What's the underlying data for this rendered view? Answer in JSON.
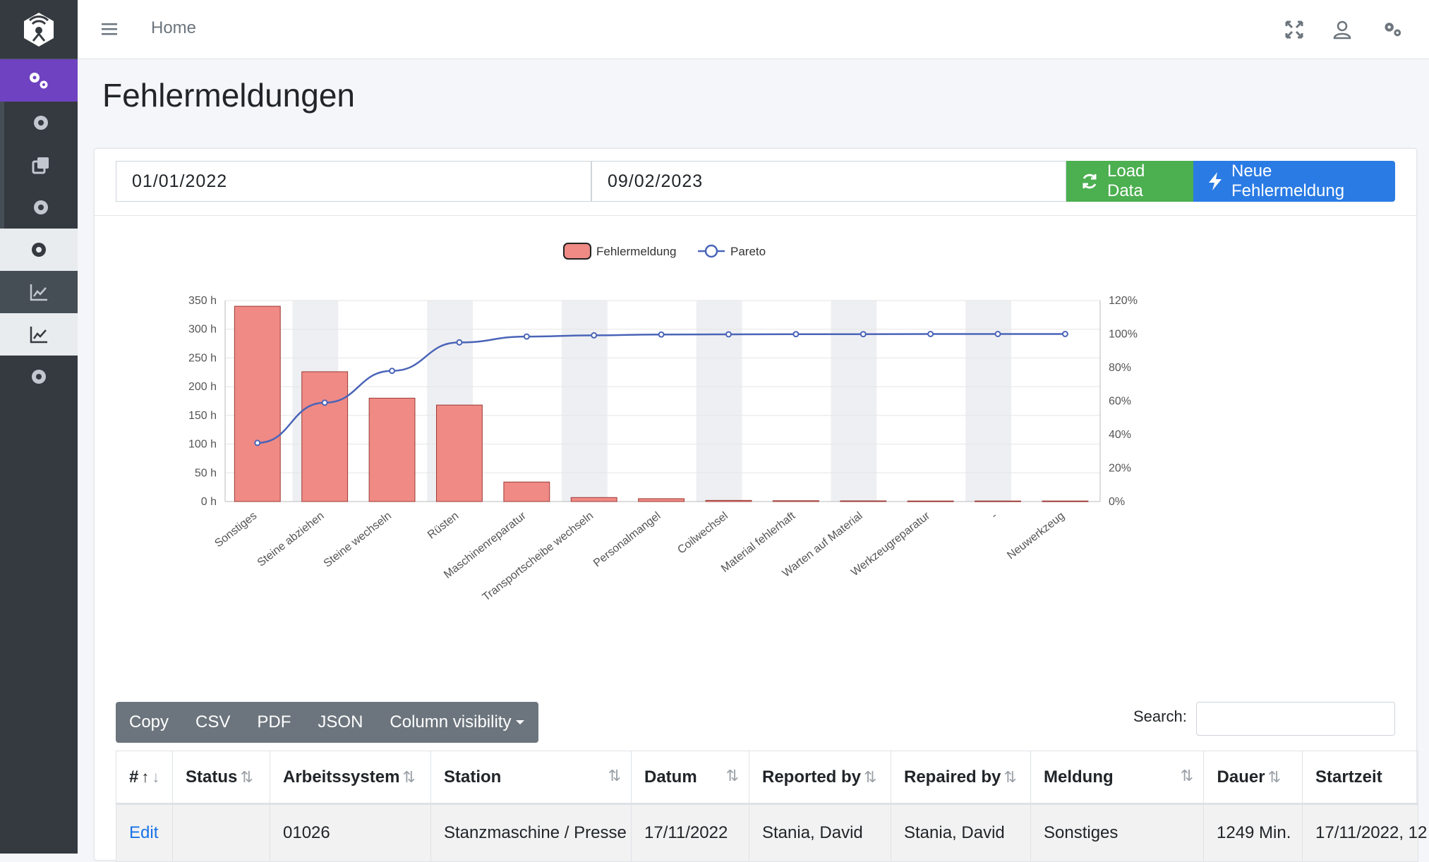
{
  "navbar": {
    "home": "Home"
  },
  "page": {
    "title": "Fehlermeldungen"
  },
  "filters": {
    "date_from": "01/01/2022",
    "date_to": "09/02/2023"
  },
  "buttons": {
    "load": "Load Data",
    "new": "Neue Fehlermeldung"
  },
  "toolbar": {
    "copy": "Copy",
    "csv": "CSV",
    "pdf": "PDF",
    "json": "JSON",
    "colvis": "Column visibility",
    "search_label": "Search:"
  },
  "table": {
    "headers": [
      "#",
      "Status",
      "Arbeitssystem",
      "Station",
      "Datum",
      "Reported by",
      "Repaired by",
      "Meldung",
      "Dauer",
      "Startzeit"
    ],
    "rows": [
      [
        "Edit",
        "",
        "01026",
        "Stanzmaschine / Presse",
        "17/11/2022",
        "Stania, David",
        "Stania, David",
        "Sonstiges",
        "1249 Min.",
        "17/11/2022, 12"
      ]
    ]
  },
  "colors": {
    "bar": "#ef8a85",
    "bar_border": "#b22222",
    "line": "#4a64b8",
    "purple": "#6f42c1",
    "green": "#4caf50",
    "blue": "#2a7be4"
  },
  "chart_data": {
    "type": "bar",
    "legend": [
      "Fehlermeldung",
      "Pareto"
    ],
    "legend_position": "top",
    "categories": [
      "Sonstiges",
      "Steine abziehen",
      "Steine wechseln",
      "Rüsten",
      "Maschinenreparatur",
      "Transportscheibe wechseln",
      "Personalmangel",
      "Coilwechsel",
      "Material fehlerhaft",
      "Warten auf Material",
      "Werkzeugreparatur",
      "-",
      "Neuwerkzeug"
    ],
    "series": [
      {
        "name": "Fehlermeldung",
        "axis": "left",
        "values": [
          340,
          226,
          180,
          168,
          34,
          7,
          5,
          2,
          1.5,
          1.2,
          1,
          1,
          1
        ]
      },
      {
        "name": "Pareto",
        "axis": "right",
        "type": "line",
        "values": [
          35,
          59,
          78,
          95,
          98.5,
          99.2,
          99.7,
          99.8,
          99.9,
          99.9,
          100,
          100,
          100
        ]
      }
    ],
    "y_left": {
      "ticks": [
        "0 h",
        "50 h",
        "100 h",
        "150 h",
        "200 h",
        "250 h",
        "300 h",
        "350 h"
      ],
      "ylim": [
        0,
        350
      ]
    },
    "y_right": {
      "ticks": [
        "0%",
        "20%",
        "40%",
        "60%",
        "80%",
        "100%",
        "120%"
      ],
      "ylim": [
        0,
        120
      ]
    },
    "grid": true
  }
}
